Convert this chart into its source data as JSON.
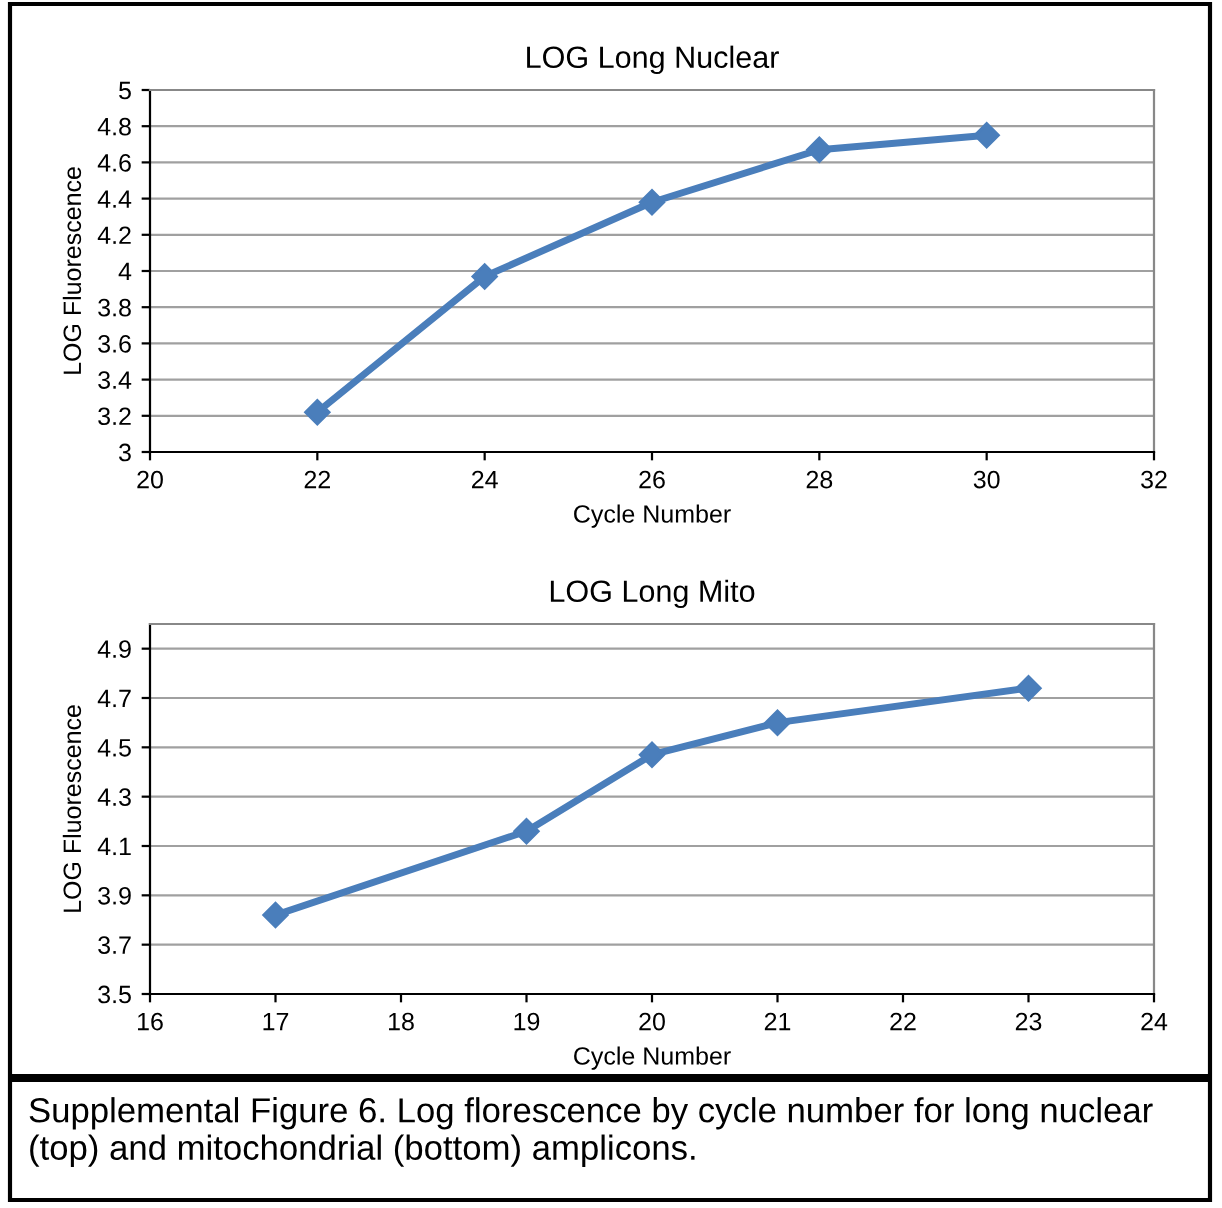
{
  "chart_data": [
    {
      "type": "line",
      "title": "LOG Long Nuclear",
      "xlabel": "Cycle Number",
      "ylabel": "LOG Fluorescence",
      "x": [
        22,
        24,
        26,
        28,
        30
      ],
      "series": [
        {
          "color": "#4a7ebb",
          "values": [
            3.22,
            3.97,
            4.38,
            4.67,
            4.75
          ]
        }
      ],
      "xlim": [
        20,
        32
      ],
      "xticks": [
        20,
        22,
        24,
        26,
        28,
        30,
        32
      ],
      "ylim": [
        3,
        5
      ],
      "yticks": [
        3,
        3.2,
        3.4,
        3.6,
        3.8,
        4,
        4.2,
        4.4,
        4.6,
        4.8,
        5
      ],
      "grid": "y",
      "marker": "diamond",
      "line_style": "solid",
      "legend": false
    },
    {
      "type": "line",
      "title": "LOG Long Mito",
      "xlabel": "Cycle Number",
      "ylabel": "LOG Fluorescence",
      "x": [
        17,
        19,
        20,
        21,
        23
      ],
      "series": [
        {
          "color": "#4a7ebb",
          "values": [
            3.82,
            4.16,
            4.47,
            4.6,
            4.74
          ]
        }
      ],
      "xlim": [
        16,
        24
      ],
      "xticks": [
        16,
        17,
        18,
        19,
        20,
        21,
        22,
        23,
        24
      ],
      "ylim": [
        3.5,
        5.0
      ],
      "yticks": [
        3.5,
        3.7,
        3.9,
        4.1,
        4.3,
        4.5,
        4.7,
        4.9
      ],
      "grid": "y",
      "marker": "diamond",
      "line_style": "solid",
      "legend": false,
      "annotations": [
        "Supplemental Figure 6. Log florescence by cycle number for long nuclear (top) and mitochondrial (bottom) amplicons."
      ]
    }
  ]
}
